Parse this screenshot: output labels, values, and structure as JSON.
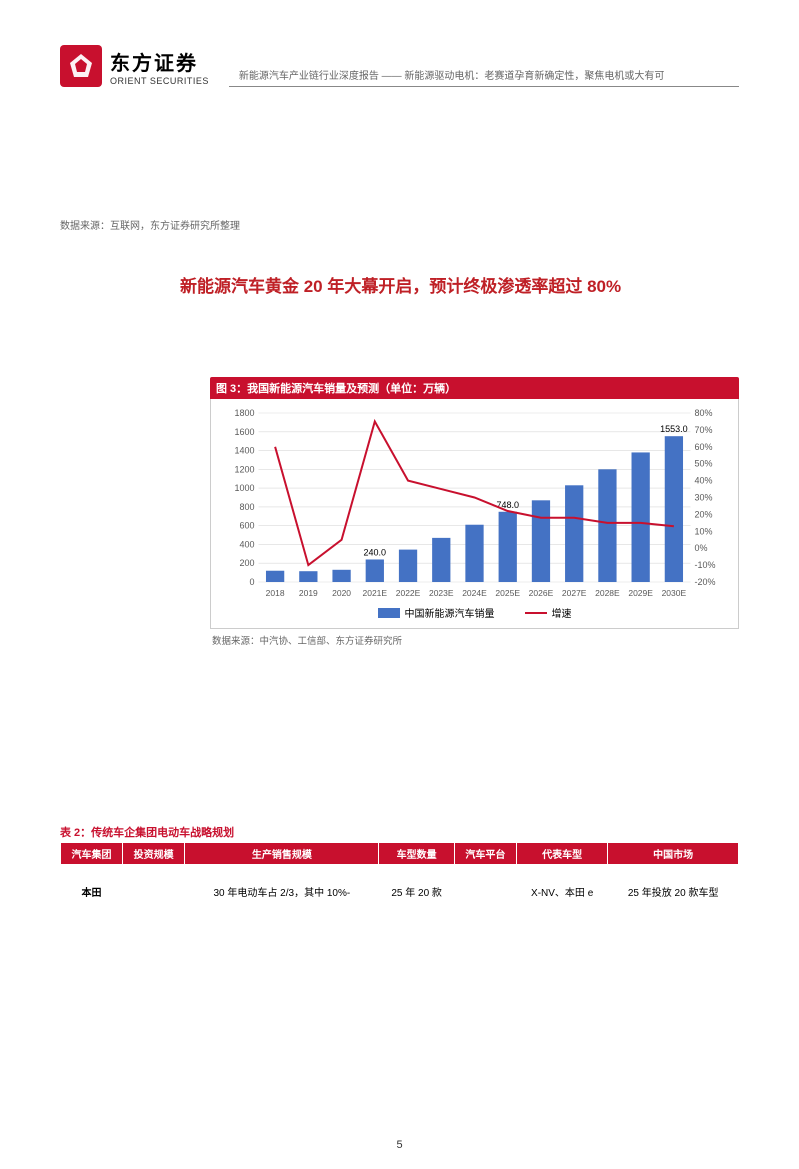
{
  "header": {
    "logo_cn": "东方证券",
    "logo_en": "ORIENT SECURITIES",
    "subtitle": "新能源汽车产业链行业深度报告 —— 新能源驱动电机：老赛道孕育新确定性，聚焦电机或大有可"
  },
  "source_note": "数据来源：互联网，东方证券研究所整理",
  "section_title": "新能源汽车黄金 20 年大幕开启，预计终极渗透率超过 80%",
  "chart": {
    "title": "图 3：我国新能源汽车销量及预测（单位：万辆）",
    "source": "数据来源：中汽协、工信部、东方证券研究所",
    "legend_bar": "中国新能源汽车销量",
    "legend_line": "增速",
    "categories": [
      "2018",
      "2019",
      "2020",
      "2021E",
      "2022E",
      "2023E",
      "2024E",
      "2025E",
      "2026E",
      "2027E",
      "2028E",
      "2029E",
      "2030E"
    ],
    "bar_values": [
      120,
      115,
      130,
      240,
      345,
      470,
      610,
      748,
      870,
      1030,
      1200,
      1380,
      1553
    ],
    "line_values": [
      60,
      -10,
      5,
      75,
      40,
      35,
      30,
      22,
      18,
      18,
      15,
      15,
      13
    ],
    "labels_shown": {
      "2021E": "240.0",
      "2025E": "748.0",
      "2030E": "1553.0"
    },
    "y_left_max": 1800,
    "y_left_step": 200,
    "y_right_min": -20,
    "y_right_max": 80,
    "y_right_step": 10,
    "bar_color": "#4472c4",
    "line_color": "#c8102e",
    "grid_color": "#d9d9d9",
    "text_color": "#595959",
    "font_size": 9
  },
  "table": {
    "title": "表 2：传统车企集团电动车战略规划",
    "headers": [
      "汽车集团",
      "投资规模",
      "生产销售规模",
      "车型数量",
      "汽车平台",
      "代表车型",
      "中国市场"
    ],
    "row": {
      "group": "本田",
      "invest": "",
      "prod_sales": "30 年电动车占 2/3，其中 10%-",
      "models": "25 年 20 款",
      "platform": "",
      "rep_models": "X-NV、本田 e",
      "china": "25 年投放 20 款车型"
    }
  },
  "page_number": "5"
}
